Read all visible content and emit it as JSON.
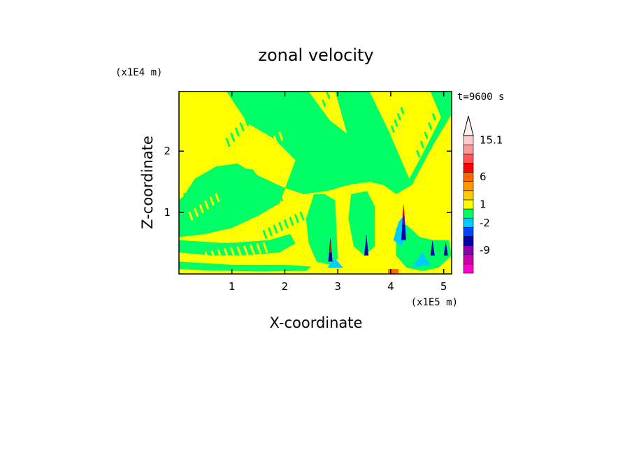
{
  "chart_data": {
    "type": "heatmap",
    "title": "zonal velocity",
    "xlabel": "X-coordinate",
    "ylabel": "Z-coordinate",
    "x_unit": "(x1E5 m)",
    "y_unit": "(x1E4 m)",
    "time_label": "t=9600 s",
    "xlim": [
      0,
      5.15
    ],
    "ylim": [
      0,
      2.97
    ],
    "x_ticks": [
      {
        "v": 1,
        "label": "1"
      },
      {
        "v": 2,
        "label": "2"
      },
      {
        "v": 3,
        "label": "3"
      },
      {
        "v": 4,
        "label": "4"
      },
      {
        "v": 5,
        "label": "5"
      }
    ],
    "y_ticks": [
      {
        "v": 1,
        "label": "1"
      },
      {
        "v": 2,
        "label": "2"
      }
    ],
    "colorbar": {
      "colors": [
        "#ff00cc",
        "#cc00aa",
        "#8800aa",
        "#0000aa",
        "#0044ff",
        "#00ccff",
        "#00ff66",
        "#ffff00",
        "#ffcc00",
        "#ff9900",
        "#ff6600",
        "#ff0000",
        "#ff5555",
        "#ff9999",
        "#ffcccc"
      ],
      "tick_labels": [
        {
          "label": "-9",
          "level": 2.5
        },
        {
          "label": "-2",
          "level": 5.5
        },
        {
          "label": "1",
          "level": 7.5
        },
        {
          "label": "6",
          "level": 10.5
        },
        {
          "label": "15.1",
          "level": 14.5
        }
      ]
    },
    "field": {
      "background": "#ffff00",
      "regions": [
        {
          "color": "#00ff66",
          "points": [
            [
              0.9,
              2.97
            ],
            [
              2.45,
              2.97
            ],
            [
              2.85,
              2.5
            ],
            [
              3.3,
              2.2
            ],
            [
              3.9,
              1.9
            ],
            [
              4.3,
              1.55
            ],
            [
              4.1,
              1.4
            ],
            [
              3.6,
              1.5
            ],
            [
              3.2,
              1.45
            ],
            [
              2.8,
              1.35
            ],
            [
              2.35,
              1.3
            ],
            [
              2.0,
              1.4
            ],
            [
              1.5,
              1.6
            ],
            [
              1.1,
              1.8
            ],
            [
              0.7,
              1.75
            ],
            [
              0.3,
              1.55
            ],
            [
              0.0,
              1.15
            ],
            [
              0.0,
              0.6
            ],
            [
              0.5,
              0.65
            ],
            [
              1.0,
              0.75
            ],
            [
              1.5,
              0.95
            ],
            [
              1.9,
              1.15
            ],
            [
              2.2,
              1.85
            ],
            [
              1.8,
              2.2
            ],
            [
              1.3,
              2.45
            ]
          ]
        },
        {
          "color": "#00ff66",
          "points": [
            [
              0.0,
              0.9
            ],
            [
              0.4,
              1.0
            ],
            [
              0.9,
              1.1
            ],
            [
              1.3,
              1.3
            ],
            [
              1.6,
              1.45
            ],
            [
              1.4,
              1.7
            ],
            [
              1.0,
              1.75
            ],
            [
              0.6,
              1.6
            ],
            [
              0.2,
              1.35
            ],
            [
              0.0,
              1.2
            ]
          ]
        },
        {
          "color": "#00ff66",
          "points": [
            [
              2.95,
              2.97
            ],
            [
              3.6,
              2.97
            ],
            [
              3.95,
              2.35
            ],
            [
              4.35,
              1.55
            ],
            [
              4.6,
              1.95
            ],
            [
              4.95,
              2.55
            ],
            [
              4.75,
              2.97
            ],
            [
              5.15,
              2.97
            ],
            [
              5.15,
              2.6
            ],
            [
              4.8,
              2.1
            ],
            [
              4.4,
              1.45
            ],
            [
              4.1,
              1.3
            ],
            [
              3.7,
              1.55
            ],
            [
              3.3,
              1.9
            ]
          ]
        },
        {
          "color": "#00ff66",
          "points": [
            [
              2.55,
              1.3
            ],
            [
              2.75,
              1.3
            ],
            [
              2.95,
              1.2
            ],
            [
              3.0,
              0.25
            ],
            [
              2.85,
              0.15
            ],
            [
              2.6,
              0.2
            ],
            [
              2.45,
              0.5
            ],
            [
              2.4,
              0.9
            ]
          ]
        },
        {
          "color": "#00ff66",
          "points": [
            [
              3.25,
              1.3
            ],
            [
              3.55,
              1.35
            ],
            [
              3.7,
              1.1
            ],
            [
              3.7,
              0.45
            ],
            [
              3.5,
              0.3
            ],
            [
              3.3,
              0.45
            ],
            [
              3.2,
              0.9
            ]
          ]
        },
        {
          "color": "#00ff66",
          "points": [
            [
              0.0,
              0.55
            ],
            [
              0.9,
              0.5
            ],
            [
              1.7,
              0.55
            ],
            [
              2.1,
              0.65
            ],
            [
              2.2,
              0.5
            ],
            [
              1.9,
              0.35
            ],
            [
              1.2,
              0.3
            ],
            [
              0.6,
              0.3
            ],
            [
              0.0,
              0.35
            ]
          ]
        },
        {
          "color": "#00ff66",
          "points": [
            [
              0.0,
              0.2
            ],
            [
              1.0,
              0.15
            ],
            [
              2.0,
              0.15
            ],
            [
              2.5,
              0.12
            ],
            [
              2.4,
              0.05
            ],
            [
              1.5,
              0.04
            ],
            [
              0.5,
              0.06
            ],
            [
              0.0,
              0.08
            ]
          ]
        },
        {
          "color": "#00ff66",
          "points": [
            [
              4.1,
              0.75
            ],
            [
              4.3,
              0.8
            ],
            [
              4.55,
              0.6
            ],
            [
              4.8,
              0.55
            ],
            [
              5.1,
              0.55
            ],
            [
              5.15,
              0.3
            ],
            [
              4.9,
              0.1
            ],
            [
              4.6,
              0.05
            ],
            [
              4.3,
              0.1
            ],
            [
              4.1,
              0.3
            ]
          ]
        },
        {
          "color": "#00ccff",
          "points": [
            [
              4.05,
              0.55
            ],
            [
              4.15,
              0.85
            ],
            [
              4.25,
              0.95
            ],
            [
              4.3,
              0.7
            ],
            [
              4.2,
              0.45
            ]
          ]
        },
        {
          "color": "#00ccff",
          "points": [
            [
              4.4,
              0.1
            ],
            [
              4.6,
              0.35
            ],
            [
              4.75,
              0.15
            ]
          ]
        },
        {
          "color": "#00ccff",
          "points": [
            [
              2.8,
              0.1
            ],
            [
              2.95,
              0.25
            ],
            [
              3.1,
              0.1
            ]
          ]
        },
        {
          "color": "#0000aa",
          "points": [
            [
              4.2,
              0.55
            ],
            [
              4.24,
              1.15
            ],
            [
              4.29,
              0.55
            ]
          ]
        },
        {
          "color": "#0000aa",
          "points": [
            [
              2.82,
              0.2
            ],
            [
              2.86,
              0.6
            ],
            [
              2.9,
              0.2
            ]
          ]
        },
        {
          "color": "#0000aa",
          "points": [
            [
              3.5,
              0.3
            ],
            [
              3.54,
              0.65
            ],
            [
              3.58,
              0.3
            ]
          ]
        },
        {
          "color": "#0000aa",
          "points": [
            [
              4.75,
              0.3
            ],
            [
              4.79,
              0.55
            ],
            [
              4.83,
              0.3
            ]
          ]
        },
        {
          "color": "#0000aa",
          "points": [
            [
              5.0,
              0.3
            ],
            [
              5.04,
              0.52
            ],
            [
              5.08,
              0.3
            ]
          ]
        },
        {
          "color": "#8800aa",
          "points": [
            [
              4.23,
              0.8
            ],
            [
              4.25,
              1.1
            ],
            [
              4.27,
              0.8
            ]
          ]
        },
        {
          "color": "#ff6600",
          "points": [
            [
              3.95,
              0.01
            ],
            [
              3.95,
              0.08
            ],
            [
              4.15,
              0.08
            ],
            [
              4.15,
              0.01
            ]
          ]
        },
        {
          "color": "#ff0000",
          "points": [
            [
              2.84,
              0.35
            ],
            [
              2.86,
              0.55
            ],
            [
              2.88,
              0.35
            ]
          ]
        },
        {
          "color": "#ff0000",
          "points": [
            [
              4.22,
              0.95
            ],
            [
              4.24,
              1.13
            ],
            [
              4.26,
              0.95
            ]
          ]
        }
      ],
      "streaks": [
        {
          "color": "#00ff66",
          "from": [
            0.9,
            2.2
          ],
          "to": [
            1.7,
            2.95
          ],
          "count": 10,
          "spacing": 0.08
        },
        {
          "color": "#00ff66",
          "from": [
            0.1,
            1.3
          ],
          "to": [
            0.6,
            1.6
          ],
          "count": 6,
          "spacing": 0.1
        },
        {
          "color": "#00ff66",
          "from": [
            1.0,
            0.95
          ],
          "to": [
            1.9,
            1.3
          ],
          "count": 12,
          "spacing": 0.07
        },
        {
          "color": "#00ff66",
          "from": [
            1.6,
            0.7
          ],
          "to": [
            2.3,
            1.0
          ],
          "count": 8,
          "spacing": 0.08
        },
        {
          "color": "#00ff66",
          "from": [
            3.9,
            2.2
          ],
          "to": [
            4.2,
            2.7
          ],
          "count": 6,
          "spacing": 0.06
        },
        {
          "color": "#00ff66",
          "from": [
            4.5,
            2.0
          ],
          "to": [
            4.8,
            2.6
          ],
          "count": 5,
          "spacing": 0.06
        },
        {
          "color": "#00ff66",
          "from": [
            2.4,
            2.3
          ],
          "to": [
            2.8,
            2.95
          ],
          "count": 6,
          "spacing": 0.06
        },
        {
          "color": "#ffff00",
          "from": [
            0.2,
            1.0
          ],
          "to": [
            0.7,
            1.3
          ],
          "count": 6,
          "spacing": 0.08
        },
        {
          "color": "#ffff00",
          "from": [
            1.2,
            1.85
          ],
          "to": [
            1.9,
            2.3
          ],
          "count": 8,
          "spacing": 0.08
        },
        {
          "color": "#ffff00",
          "from": [
            0.5,
            0.35
          ],
          "to": [
            1.6,
            0.5
          ],
          "count": 10,
          "spacing": 0.1
        }
      ]
    }
  }
}
